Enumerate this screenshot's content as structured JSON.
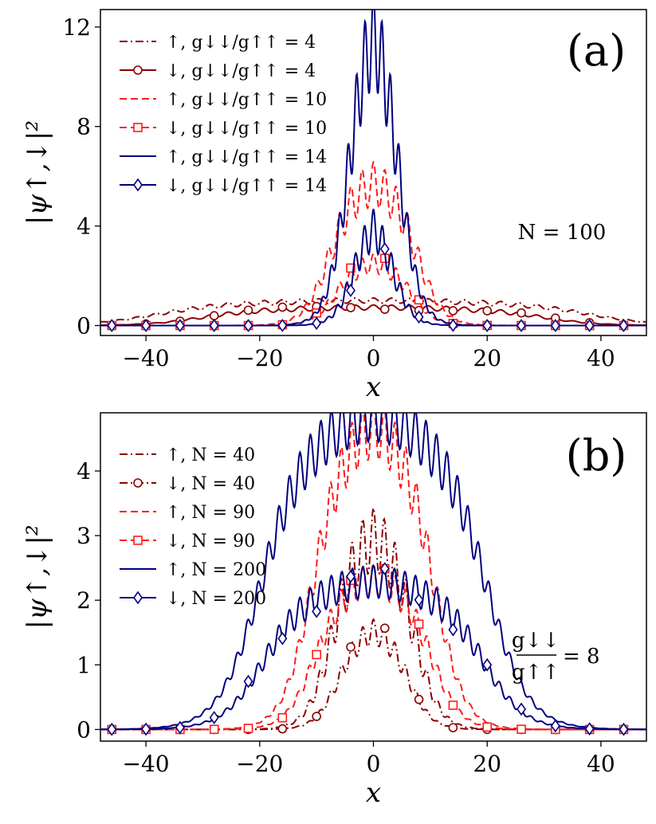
{
  "colors": {
    "dark_red": "#8b0000",
    "red": "#ff1a1a",
    "navy": "#000080"
  },
  "chart_data": [
    {
      "type": "line",
      "panel_label": "(a)",
      "xlabel": "x",
      "ylabel": "|ψ↑,↓|²",
      "xlim": [
        -48,
        48
      ],
      "ylim": [
        -0.4,
        12.7
      ],
      "xticks": [
        -40,
        -20,
        0,
        20,
        40
      ],
      "yticks": [
        0,
        4,
        8,
        12
      ],
      "grid": false,
      "legend_position": "top-left",
      "annotation": "N = 100",
      "series": [
        {
          "name": "↑, g↓↓/g↑↑ = 4",
          "color": "#8b0000",
          "dash": "dashdot",
          "marker": "none",
          "profile": {
            "center": 0,
            "half_width": 38,
            "height": 0.9,
            "ripple_amplitude": 0.1,
            "ripple_period": 3.2
          }
        },
        {
          "name": "↓, g↓↓/g↑↑ = 4",
          "color": "#8b0000",
          "dash": "solid",
          "marker": "circle",
          "profile": {
            "center": 0,
            "half_width": 30,
            "height": 0.65,
            "ripple_amplitude": 0.1,
            "ripple_period": 3.2
          }
        },
        {
          "name": "↑, g↓↓/g↑↑ = 10",
          "color": "#ff1a1a",
          "dash": "dashed",
          "marker": "none",
          "profile": {
            "center": 0,
            "half_width": 8,
            "height": 5.2,
            "ripple_amplitude": 0.9,
            "ripple_period": 2.0
          }
        },
        {
          "name": "↓, g↓↓/g↑↑ = 10",
          "color": "#ff1a1a",
          "dash": "dashed",
          "marker": "square",
          "profile": {
            "center": 0,
            "half_width": 7,
            "height": 2.3,
            "ripple_amplitude": 0.4,
            "ripple_period": 2.0
          }
        },
        {
          "name": "↑, g↓↓/g↑↑ = 14",
          "color": "#000080",
          "dash": "solid",
          "marker": "none",
          "profile": {
            "center": 0,
            "half_width": 4.8,
            "height": 11.0,
            "ripple_amplitude": 2.0,
            "ripple_period": 1.5
          }
        },
        {
          "name": "↓, g↓↓/g↑↑ = 14",
          "color": "#000080",
          "dash": "solid",
          "marker": "diamond",
          "profile": {
            "center": 0,
            "half_width": 3.8,
            "height": 3.8,
            "ripple_amplitude": 0.9,
            "ripple_period": 1.6
          }
        }
      ]
    },
    {
      "type": "line",
      "panel_label": "(b)",
      "xlabel": "x",
      "ylabel": "|ψ↑,↓|²",
      "xlim": [
        -48,
        48
      ],
      "ylim": [
        -0.18,
        4.9
      ],
      "xticks": [
        -40,
        -20,
        0,
        20,
        40
      ],
      "yticks": [
        0,
        1,
        2,
        3,
        4
      ],
      "grid": false,
      "legend_position": "top-left",
      "annotation": {
        "numerator": "g↓↓",
        "denominator": "g↑↑",
        "value": "= 8"
      },
      "series": [
        {
          "name": "↑, N = 40",
          "color": "#8b0000",
          "dash": "dashdot",
          "marker": "none",
          "profile": {
            "center": 0,
            "half_width": 7.5,
            "height": 2.7,
            "ripple_amplitude": 0.5,
            "ripple_period": 1.9
          }
        },
        {
          "name": "↓, N = 40",
          "color": "#8b0000",
          "dash": "dashdot",
          "marker": "circle",
          "profile": {
            "center": 0,
            "half_width": 6.5,
            "height": 1.4,
            "ripple_amplitude": 0.2,
            "ripple_period": 1.9
          }
        },
        {
          "name": "↑, N = 90",
          "color": "#ff1a1a",
          "dash": "dashed",
          "marker": "none",
          "profile": {
            "center": 0,
            "half_width": 11,
            "height": 4.2,
            "ripple_amplitude": 0.45,
            "ripple_period": 1.9
          }
        },
        {
          "name": "↓, N = 90",
          "color": "#ff1a1a",
          "dash": "dashed",
          "marker": "square",
          "profile": {
            "center": 0,
            "half_width": 10.5,
            "height": 2.1,
            "ripple_amplitude": 0.25,
            "ripple_period": 1.9
          }
        },
        {
          "name": "↑, N = 200",
          "color": "#000080",
          "dash": "solid",
          "marker": "none",
          "profile": {
            "center": 0,
            "half_width": 20,
            "height": 4.35,
            "ripple_amplitude": 0.4,
            "ripple_period": 1.85
          }
        },
        {
          "name": "↓, N = 200",
          "color": "#000080",
          "dash": "solid",
          "marker": "diamond",
          "profile": {
            "center": 0,
            "half_width": 19.5,
            "height": 2.05,
            "ripple_amplitude": 0.25,
            "ripple_period": 1.85
          }
        }
      ]
    }
  ]
}
